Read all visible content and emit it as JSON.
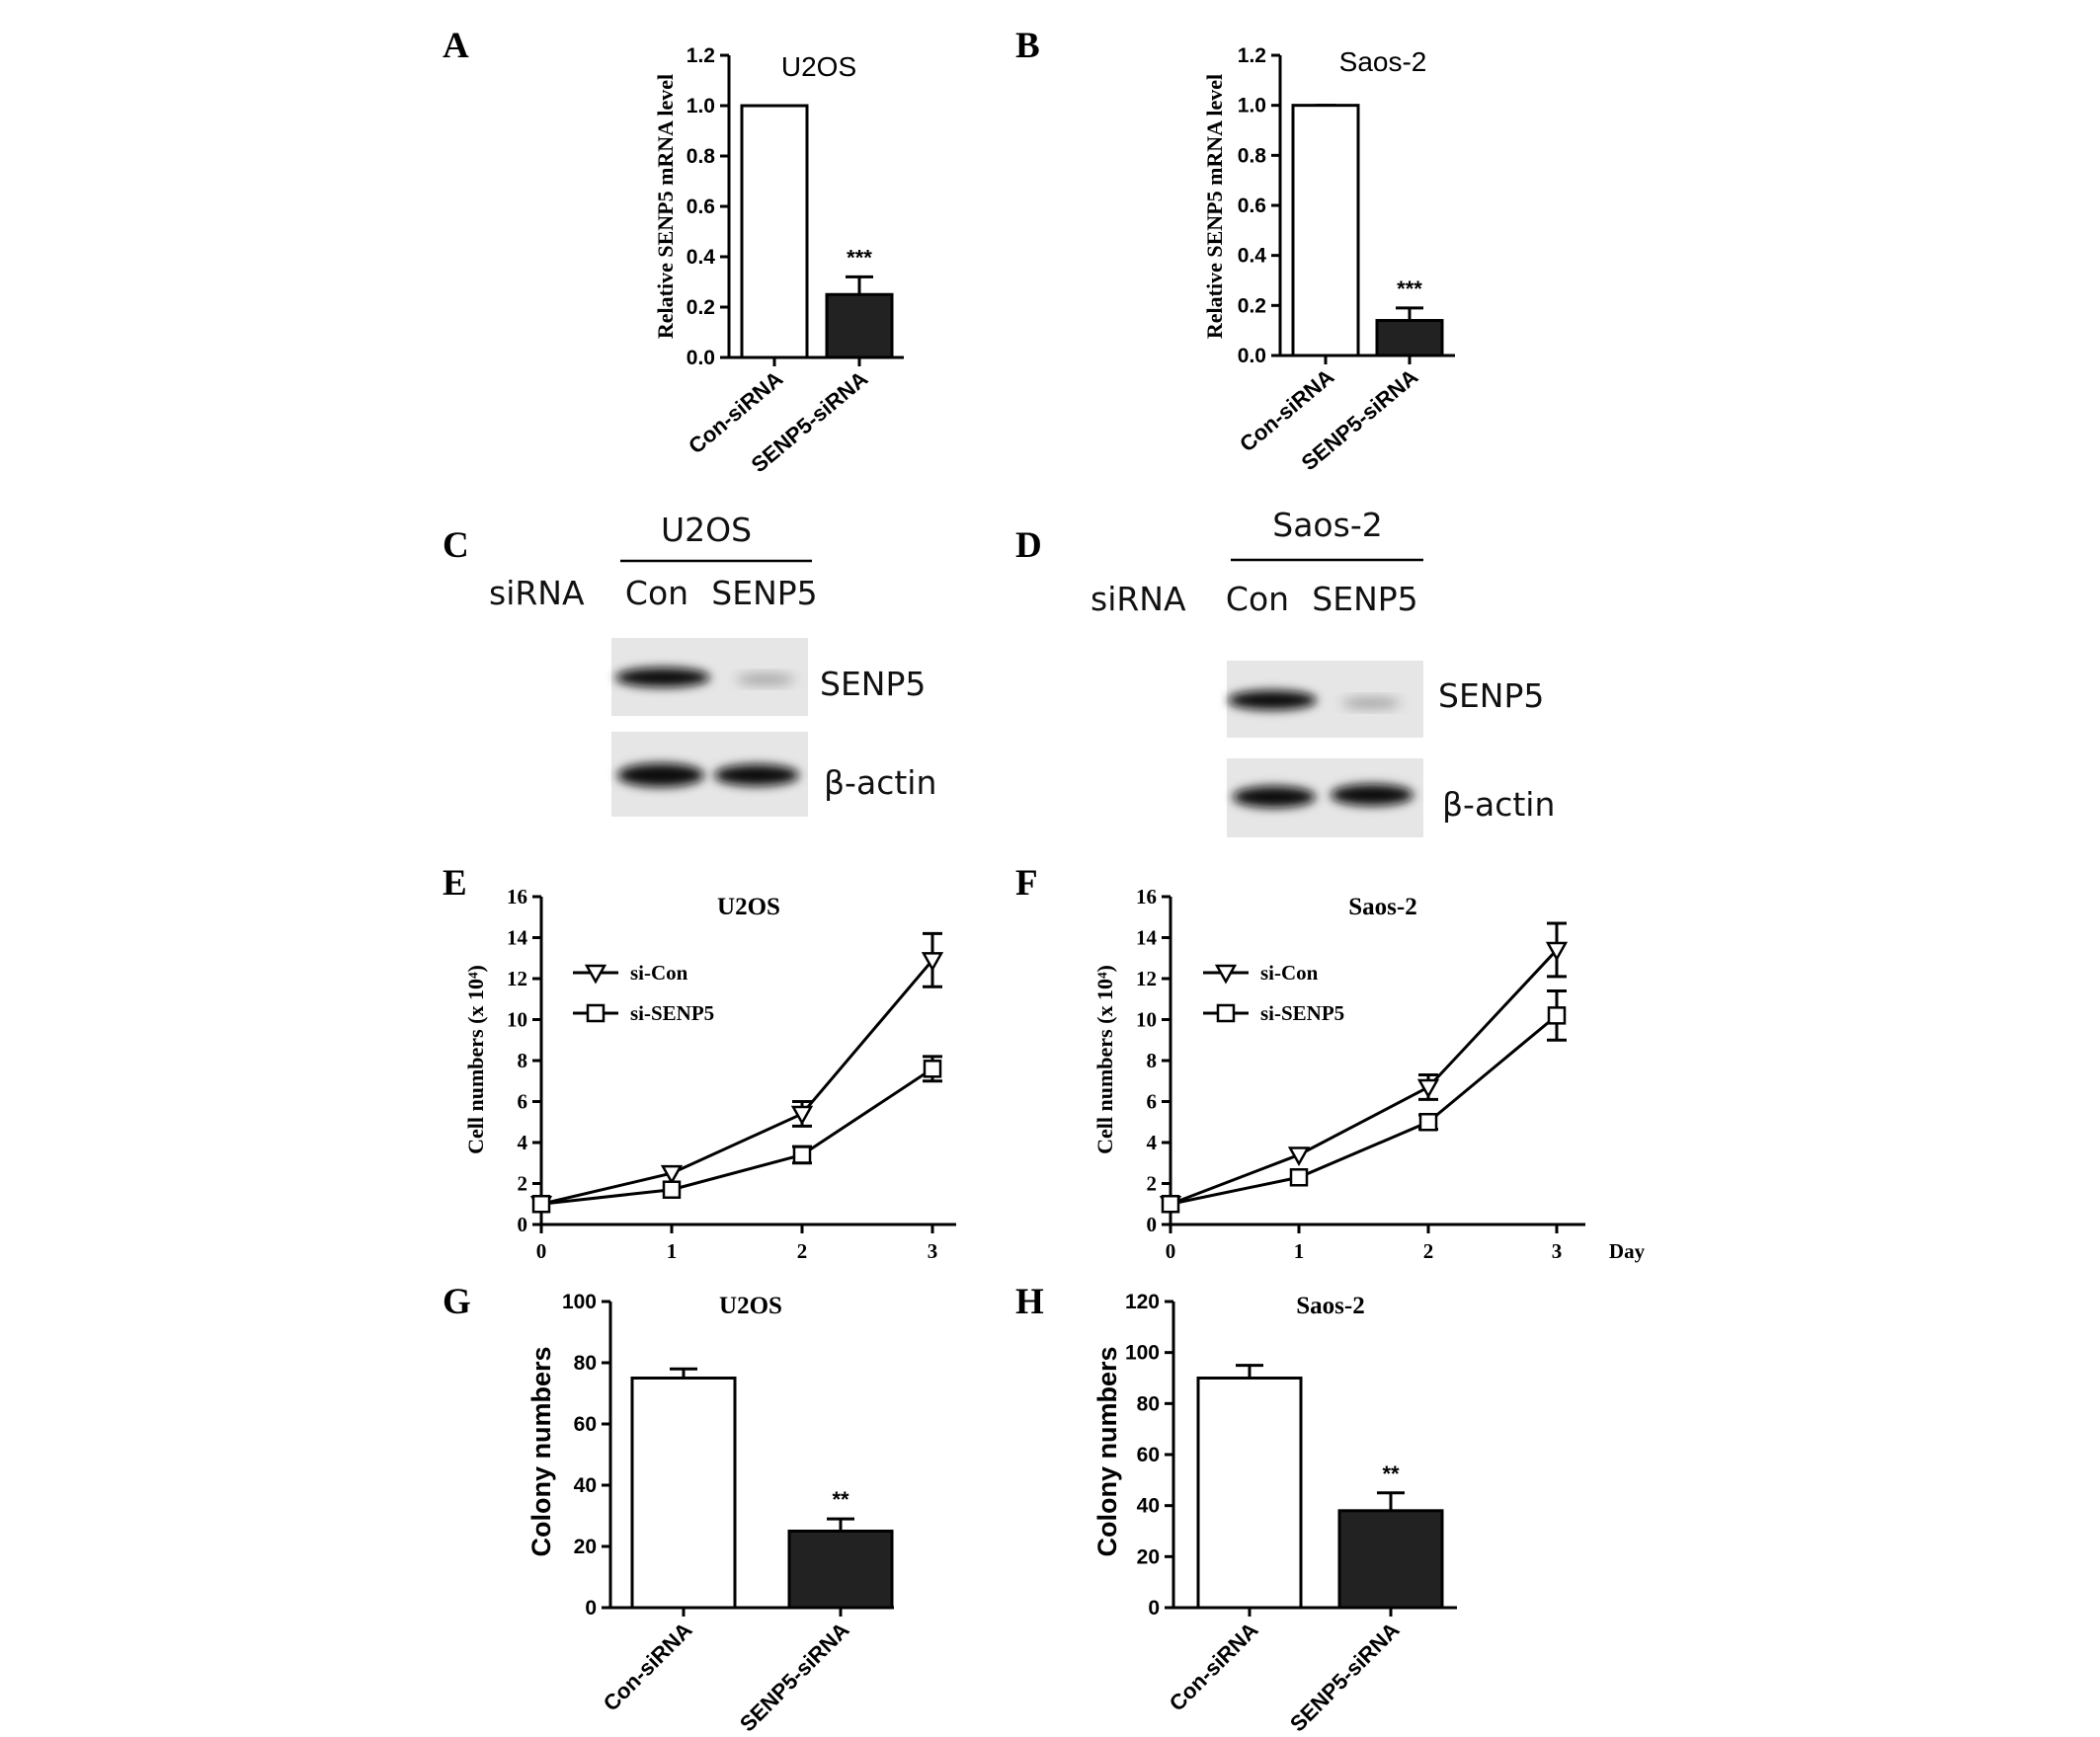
{
  "panels": {
    "A": "A",
    "B": "B",
    "C": "C",
    "D": "D",
    "E": "E",
    "F": "F",
    "G": "G",
    "H": "H"
  },
  "blots": [
    {
      "cell_line": "U2OS",
      "row_label": "siRNA",
      "lanes": [
        "Con",
        "SENP5"
      ],
      "proteins": [
        "SENP5",
        "β-actin"
      ]
    },
    {
      "cell_line": "Saos-2",
      "row_label": "siRNA",
      "lanes": [
        "Con",
        "SENP5"
      ],
      "proteins": [
        "SENP5",
        "β-actin"
      ]
    }
  ],
  "chart_data": [
    {
      "panel": "A",
      "type": "bar",
      "title": "U2OS",
      "ylabel": "Relative SENP5 mRNA level",
      "categories": [
        "Con-siRNA",
        "SENP5-siRNA"
      ],
      "values": [
        1.0,
        0.25
      ],
      "errors": [
        0.0,
        0.07
      ],
      "annotations": [
        "",
        "***"
      ],
      "ylim": [
        0,
        1.2
      ],
      "yticks": [
        "0.0",
        "0.2",
        "0.4",
        "0.6",
        "0.8",
        "1.0",
        "1.2"
      ],
      "bar_colors": [
        "#ffffff",
        "#222222"
      ]
    },
    {
      "panel": "B",
      "type": "bar",
      "title": "Saos-2",
      "ylabel": "Relative SENP5 mRNA level",
      "categories": [
        "Con-siRNA",
        "SENP5-siRNA"
      ],
      "values": [
        1.0,
        0.14
      ],
      "errors": [
        0.0,
        0.05
      ],
      "annotations": [
        "",
        "***"
      ],
      "ylim": [
        0,
        1.2
      ],
      "yticks": [
        "0.0",
        "0.2",
        "0.4",
        "0.6",
        "0.8",
        "1.0",
        "1.2"
      ],
      "bar_colors": [
        "#ffffff",
        "#222222"
      ]
    },
    {
      "panel": "E",
      "type": "line",
      "title": "U2OS",
      "ylabel": "Cell numbers (x 10⁴)",
      "xlabel": "",
      "x": [
        0,
        1,
        2,
        3
      ],
      "xticks": [
        "0",
        "1",
        "2",
        "3"
      ],
      "ylim": [
        0,
        16
      ],
      "yticks": [
        "0",
        "2",
        "4",
        "6",
        "8",
        "10",
        "12",
        "14",
        "16"
      ],
      "series": [
        {
          "name": "si-Con",
          "marker": "triangle-down",
          "values": [
            1.0,
            2.5,
            5.4,
            12.9
          ],
          "errors": [
            0.1,
            0.2,
            0.6,
            1.3
          ]
        },
        {
          "name": "si-SENP5",
          "marker": "square",
          "values": [
            1.0,
            1.7,
            3.4,
            7.6
          ],
          "errors": [
            0.1,
            0.15,
            0.4,
            0.6
          ]
        }
      ],
      "legend": "top-left"
    },
    {
      "panel": "F",
      "type": "line",
      "title": "Saos-2",
      "ylabel": "Cell numbers (x 10⁴)",
      "xlabel": "Day",
      "x": [
        0,
        1,
        2,
        3
      ],
      "xticks": [
        "0",
        "1",
        "2",
        "3"
      ],
      "ylim": [
        0,
        16
      ],
      "yticks": [
        "0",
        "2",
        "4",
        "6",
        "8",
        "10",
        "12",
        "14",
        "16"
      ],
      "series": [
        {
          "name": "si-Con",
          "marker": "triangle-down",
          "values": [
            1.0,
            3.4,
            6.7,
            13.4
          ],
          "errors": [
            0.1,
            0.2,
            0.6,
            1.3
          ]
        },
        {
          "name": "si-SENP5",
          "marker": "square",
          "values": [
            1.0,
            2.3,
            5.0,
            10.2
          ],
          "errors": [
            0.1,
            0.15,
            0.35,
            1.2
          ]
        }
      ],
      "legend": "top-left"
    },
    {
      "panel": "G",
      "type": "bar",
      "title": "U2OS",
      "ylabel": "Colony numbers",
      "categories": [
        "Con-siRNA",
        "SENP5-siRNA"
      ],
      "values": [
        75,
        25
      ],
      "errors": [
        3,
        4
      ],
      "annotations": [
        "",
        "**"
      ],
      "ylim": [
        0,
        100
      ],
      "yticks": [
        "0",
        "20",
        "40",
        "60",
        "80",
        "100"
      ],
      "bar_colors": [
        "#ffffff",
        "#222222"
      ]
    },
    {
      "panel": "H",
      "type": "bar",
      "title": "Saos-2",
      "ylabel": "Colony numbers",
      "categories": [
        "Con-siRNA",
        "SENP5-siRNA"
      ],
      "values": [
        90,
        38
      ],
      "errors": [
        5,
        7
      ],
      "annotations": [
        "",
        "**"
      ],
      "ylim": [
        0,
        120
      ],
      "yticks": [
        "0",
        "20",
        "40",
        "60",
        "80",
        "100",
        "120"
      ],
      "bar_colors": [
        "#ffffff",
        "#222222"
      ]
    }
  ]
}
